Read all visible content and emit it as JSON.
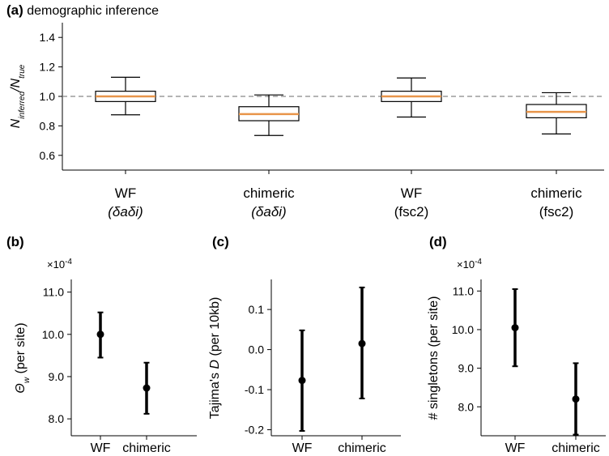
{
  "panels": [
    {
      "id": "a",
      "label": "(a)",
      "title": "demographic inference",
      "chart_data": {
        "type": "box",
        "ylabel_main": "N",
        "ylabel_sub1": "inferred",
        "ylabel_slash": "/N",
        "ylabel_sub2": "true",
        "ylim": [
          0.5,
          1.5
        ],
        "yticks": [
          0.6,
          0.8,
          1.0,
          1.2,
          1.4
        ],
        "ytick_labels": [
          "0.6",
          "0.8",
          "1.0",
          "1.2",
          "1.4"
        ],
        "reference_line": 1.0,
        "categories": [
          {
            "line1": "WF",
            "line2": "(δaδi)",
            "italic2": true
          },
          {
            "line1": "chimeric",
            "line2": "(δaδi)",
            "italic2": true
          },
          {
            "line1": "WF",
            "line2": "(fsc2)",
            "italic2": false
          },
          {
            "line1": "chimeric",
            "line2": "(fsc2)",
            "italic2": false
          }
        ],
        "boxes": [
          {
            "whisker_low": 0.875,
            "q1": 0.965,
            "median": 1.0,
            "q3": 1.035,
            "whisker_high": 1.13
          },
          {
            "whisker_low": 0.735,
            "q1": 0.835,
            "median": 0.88,
            "q3": 0.93,
            "whisker_high": 1.01
          },
          {
            "whisker_low": 0.86,
            "q1": 0.965,
            "median": 1.0,
            "q3": 1.035,
            "whisker_high": 1.125
          },
          {
            "whisker_low": 0.745,
            "q1": 0.855,
            "median": 0.895,
            "q3": 0.945,
            "whisker_high": 1.025
          }
        ]
      }
    },
    {
      "id": "b",
      "label": "(b)",
      "chart_data": {
        "type": "errorbar",
        "multiplier": "×10",
        "multiplier_exp": "-4",
        "ylabel_pre": "Θ",
        "ylabel_sub": "w",
        "ylabel_post": " (per site)",
        "ylim": [
          7.6,
          11.3
        ],
        "yticks": [
          8.0,
          9.0,
          10.0,
          11.0
        ],
        "ytick_labels": [
          "8.0",
          "9.0",
          "10.0",
          "11.0"
        ],
        "categories": [
          "WF",
          "chimeric"
        ],
        "points": [
          {
            "value": 10.0,
            "low": 9.45,
            "high": 10.52
          },
          {
            "value": 8.73,
            "low": 8.12,
            "high": 9.33
          }
        ]
      }
    },
    {
      "id": "c",
      "label": "(c)",
      "chart_data": {
        "type": "errorbar",
        "ylabel_pre": "Tajima's ",
        "ylabel_italic": "D",
        "ylabel_post": " (per 10kb)",
        "ylim": [
          -0.215,
          0.175
        ],
        "yticks": [
          -0.2,
          -0.1,
          0.0,
          0.1
        ],
        "ytick_labels": [
          "-0.2",
          "-0.1",
          "0.0",
          "0.1"
        ],
        "categories": [
          "WF",
          "chimeric"
        ],
        "points": [
          {
            "value": -0.077,
            "low": -0.203,
            "high": 0.048
          },
          {
            "value": 0.015,
            "low": -0.122,
            "high": 0.155
          }
        ]
      }
    },
    {
      "id": "d",
      "label": "(d)",
      "chart_data": {
        "type": "errorbar",
        "multiplier": "×10",
        "multiplier_exp": "-4",
        "ylabel_pre": "# singletons (per site)",
        "ylim": [
          7.25,
          11.3
        ],
        "yticks": [
          8.0,
          9.0,
          10.0,
          11.0
        ],
        "ytick_labels": [
          "8.0",
          "9.0",
          "10.0",
          "11.0"
        ],
        "categories": [
          "WF",
          "chimeric"
        ],
        "points": [
          {
            "value": 10.05,
            "low": 9.05,
            "high": 11.05
          },
          {
            "value": 8.2,
            "low": 7.28,
            "high": 9.13
          }
        ]
      }
    }
  ]
}
